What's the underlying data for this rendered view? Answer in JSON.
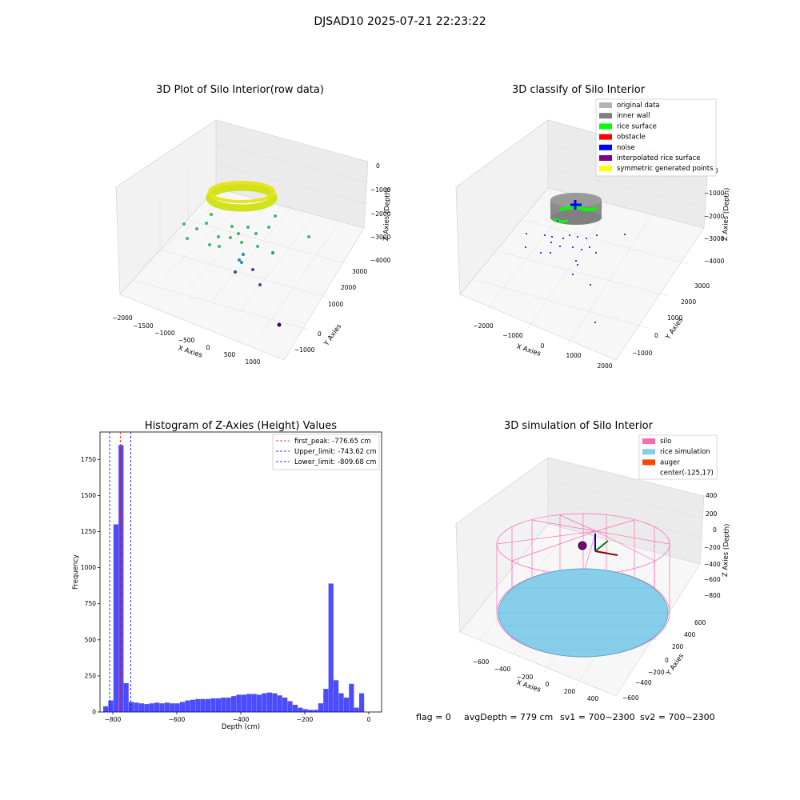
{
  "suptitle": "DJSAD10 2025-07-21 22:23:22",
  "panel_raw": {
    "title": "3D Plot of Silo Interior(row data)",
    "xlabel": "X Axies",
    "ylabel": "Y Axies",
    "zlabel": "Z Axies (Depth)",
    "xticks": [
      "−2000",
      "−1500",
      "−1000",
      "−500",
      "0",
      "500",
      "1000"
    ],
    "yticks": [
      "−1000",
      "0",
      "1000",
      "2000",
      "3000"
    ],
    "zticks": [
      "0",
      "−1000",
      "−2000",
      "−3000",
      "−4000"
    ]
  },
  "panel_classify": {
    "title": "3D classify of Silo Interior",
    "xlabel": "X Axies",
    "ylabel": "Y Axies",
    "zlabel": "Z Axies (Depth)",
    "xticks": [
      "−2000",
      "−1000",
      "0",
      "1000",
      "2000"
    ],
    "yticks": [
      "−1000",
      "0",
      "1000",
      "2000",
      "3000"
    ],
    "zticks": [
      "0",
      "−1000",
      "−2000",
      "−3000",
      "−4000"
    ],
    "legend": [
      {
        "label": "original data",
        "color": "#b3b3b3"
      },
      {
        "label": "inner wall",
        "color": "#808080"
      },
      {
        "label": "rice surface",
        "color": "#00ff00"
      },
      {
        "label": "obstacle",
        "color": "#ff0000"
      },
      {
        "label": "noise",
        "color": "#0000ff"
      },
      {
        "label": "interpolated rice surface",
        "color": "#800080"
      },
      {
        "label": "symmetric generated points",
        "color": "#ffff00"
      }
    ]
  },
  "panel_sim": {
    "title": "3D simulation of Silo Interior",
    "xlabel": "X Axies",
    "ylabel": "Y Axies",
    "zlabel": "Z Axies (Depth)",
    "xticks": [
      "−600",
      "−400",
      "−200",
      "0",
      "200",
      "400"
    ],
    "yticks": [
      "−600",
      "−400",
      "−200",
      "0",
      "200",
      "400",
      "600"
    ],
    "zticks": [
      "400",
      "200",
      "0",
      "−200",
      "−400",
      "−600",
      "−800"
    ],
    "legend": [
      {
        "label": "silo",
        "color": "#ff69b4"
      },
      {
        "label": "rice simulation",
        "color": "#87ceeb"
      },
      {
        "label": "auger",
        "color": "#ff4500"
      },
      {
        "label": "center(-125,17)",
        "color": ""
      }
    ]
  },
  "footer": {
    "flag": "flag = 0",
    "avg": "avgDepth = 779 cm",
    "sv1": "sv1 = 700~2300",
    "sv2": "sv2 = 700~2300"
  },
  "chart_data": {
    "type": "bar",
    "title": "Histogram of Z-Axies (Height) Values",
    "xlabel": "Depth (cm)",
    "ylabel": "Frequency",
    "xlim": [
      -840,
      40
    ],
    "ylim": [
      0,
      1940
    ],
    "xticks": [
      -800,
      -600,
      -400,
      -200,
      0
    ],
    "yticks": [
      0,
      250,
      500,
      750,
      1000,
      1250,
      1500,
      1750
    ],
    "bar_color": "#0000ff",
    "bin_width": 16,
    "bins_start": [
      -830,
      -814,
      -798,
      -782,
      -766,
      -750,
      -734,
      -718,
      -702,
      -686,
      -670,
      -654,
      -638,
      -622,
      -606,
      -590,
      -574,
      -558,
      -542,
      -526,
      -510,
      -494,
      -478,
      -462,
      -446,
      -430,
      -414,
      -398,
      -382,
      -366,
      -350,
      -334,
      -318,
      -302,
      -286,
      -270,
      -254,
      -238,
      -222,
      -206,
      -190,
      -174,
      -158,
      -142,
      -126,
      -110,
      -94,
      -78,
      -62,
      -46,
      -30,
      -14
    ],
    "values": [
      40,
      80,
      1300,
      1850,
      200,
      70,
      65,
      60,
      55,
      60,
      65,
      60,
      65,
      60,
      60,
      70,
      80,
      85,
      90,
      90,
      90,
      95,
      95,
      100,
      100,
      110,
      120,
      120,
      125,
      125,
      120,
      130,
      135,
      130,
      115,
      100,
      75,
      50,
      30,
      20,
      15,
      15,
      60,
      160,
      890,
      220,
      130,
      100,
      195,
      30,
      130,
      0
    ],
    "vlines": [
      {
        "x": -776.65,
        "label": "first_peak: -776.65 cm",
        "color": "#ff0000"
      },
      {
        "x": -743.62,
        "label": "Upper_limit: -743.62 cm",
        "color": "#0000ff"
      },
      {
        "x": -809.68,
        "label": "Lower_limit: -809.68 cm",
        "color": "#0000ff"
      }
    ]
  }
}
